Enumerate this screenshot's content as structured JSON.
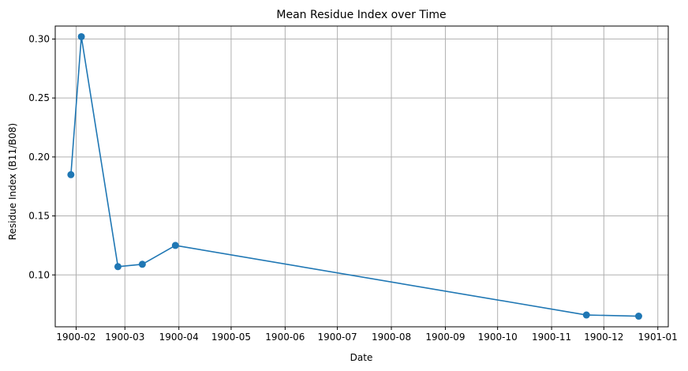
{
  "chart_data": {
    "type": "line",
    "title": "Mean Residue Index over Time",
    "xlabel": "Date",
    "ylabel": "Residue Index (B11/B08)",
    "x_tick_labels": [
      "1900-02",
      "1900-03",
      "1900-04",
      "1900-05",
      "1900-06",
      "1900-07",
      "1900-08",
      "1900-09",
      "1900-10",
      "1900-11",
      "1900-12",
      "1901-01"
    ],
    "y_ticks": [
      0.1,
      0.15,
      0.2,
      0.25,
      0.3
    ],
    "y_tick_labels": [
      "0.10",
      "0.15",
      "0.20",
      "0.25",
      "0.30"
    ],
    "xlim": [
      "1900-01-20",
      "1901-01-07"
    ],
    "ylim": [
      0.056,
      0.311
    ],
    "grid": true,
    "series": [
      {
        "color": "#1f77b4",
        "marker": "circle",
        "points": [
          {
            "x": "1900-01-29",
            "y": 0.185
          },
          {
            "x": "1900-02-04",
            "y": 0.302
          },
          {
            "x": "1900-02-25",
            "y": 0.107
          },
          {
            "x": "1900-03-11",
            "y": 0.109
          },
          {
            "x": "1900-03-30",
            "y": 0.125
          },
          {
            "x": "1900-11-21",
            "y": 0.066
          },
          {
            "x": "1900-12-21",
            "y": 0.065
          }
        ]
      }
    ]
  }
}
